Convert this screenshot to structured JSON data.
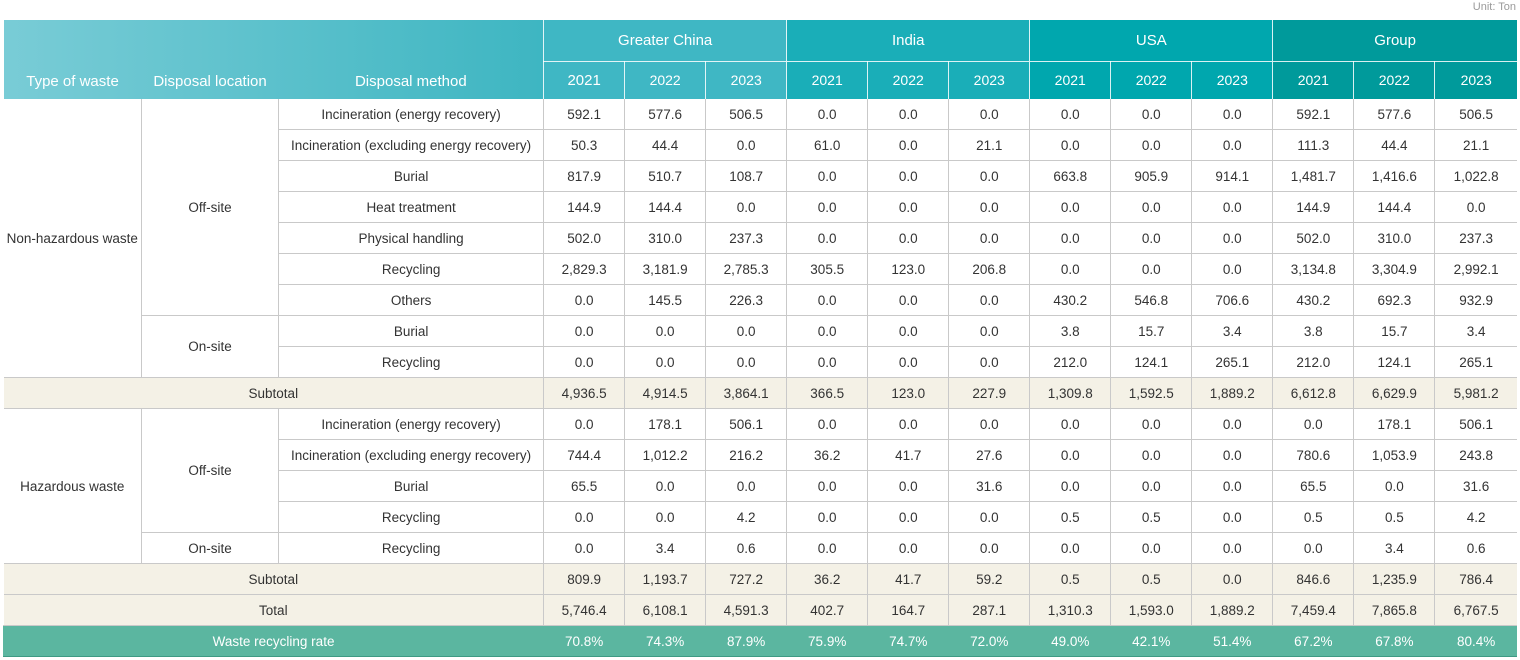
{
  "unit_label": "Unit: Ton",
  "header": {
    "type_of_waste": "Type of waste",
    "disposal_location": "Disposal location",
    "disposal_method": "Disposal method",
    "regions": [
      "Greater China",
      "India",
      "USA",
      "Group"
    ],
    "years": [
      "2021",
      "2022",
      "2023"
    ]
  },
  "non_hazardous": {
    "type": "Non-hazardous waste",
    "offsite_label": "Off-site",
    "onsite_label": "On-site",
    "rows": [
      {
        "method": "Incineration (energy recovery)",
        "v": [
          "592.1",
          "577.6",
          "506.5",
          "0.0",
          "0.0",
          "0.0",
          "0.0",
          "0.0",
          "0.0",
          "592.1",
          "577.6",
          "506.5"
        ]
      },
      {
        "method": "Incineration (excluding energy recovery)",
        "v": [
          "50.3",
          "44.4",
          "0.0",
          "61.0",
          "0.0",
          "21.1",
          "0.0",
          "0.0",
          "0.0",
          "111.3",
          "44.4",
          "21.1"
        ]
      },
      {
        "method": "Burial",
        "v": [
          "817.9",
          "510.7",
          "108.7",
          "0.0",
          "0.0",
          "0.0",
          "663.8",
          "905.9",
          "914.1",
          "1,481.7",
          "1,416.6",
          "1,022.8"
        ]
      },
      {
        "method": "Heat treatment",
        "v": [
          "144.9",
          "144.4",
          "0.0",
          "0.0",
          "0.0",
          "0.0",
          "0.0",
          "0.0",
          "0.0",
          "144.9",
          "144.4",
          "0.0"
        ]
      },
      {
        "method": "Physical handling",
        "v": [
          "502.0",
          "310.0",
          "237.3",
          "0.0",
          "0.0",
          "0.0",
          "0.0",
          "0.0",
          "0.0",
          "502.0",
          "310.0",
          "237.3"
        ]
      },
      {
        "method": "Recycling",
        "v": [
          "2,829.3",
          "3,181.9",
          "2,785.3",
          "305.5",
          "123.0",
          "206.8",
          "0.0",
          "0.0",
          "0.0",
          "3,134.8",
          "3,304.9",
          "2,992.1"
        ]
      },
      {
        "method": "Others",
        "v": [
          "0.0",
          "145.5",
          "226.3",
          "0.0",
          "0.0",
          "0.0",
          "430.2",
          "546.8",
          "706.6",
          "430.2",
          "692.3",
          "932.9"
        ]
      },
      {
        "method": "Burial",
        "v": [
          "0.0",
          "0.0",
          "0.0",
          "0.0",
          "0.0",
          "0.0",
          "3.8",
          "15.7",
          "3.4",
          "3.8",
          "15.7",
          "3.4"
        ]
      },
      {
        "method": "Recycling",
        "v": [
          "0.0",
          "0.0",
          "0.0",
          "0.0",
          "0.0",
          "0.0",
          "212.0",
          "124.1",
          "265.1",
          "212.0",
          "124.1",
          "265.1"
        ]
      }
    ],
    "subtotal": {
      "label": "Subtotal",
      "v": [
        "4,936.5",
        "4,914.5",
        "3,864.1",
        "366.5",
        "123.0",
        "227.9",
        "1,309.8",
        "1,592.5",
        "1,889.2",
        "6,612.8",
        "6,629.9",
        "5,981.2"
      ]
    }
  },
  "hazardous": {
    "type": "Hazardous waste",
    "offsite_label": "Off-site",
    "onsite_label": "On-site",
    "rows": [
      {
        "method": "Incineration (energy recovery)",
        "v": [
          "0.0",
          "178.1",
          "506.1",
          "0.0",
          "0.0",
          "0.0",
          "0.0",
          "0.0",
          "0.0",
          "0.0",
          "178.1",
          "506.1"
        ]
      },
      {
        "method": "Incineration (excluding energy recovery)",
        "v": [
          "744.4",
          "1,012.2",
          "216.2",
          "36.2",
          "41.7",
          "27.6",
          "0.0",
          "0.0",
          "0.0",
          "780.6",
          "1,053.9",
          "243.8"
        ]
      },
      {
        "method": "Burial",
        "v": [
          "65.5",
          "0.0",
          "0.0",
          "0.0",
          "0.0",
          "31.6",
          "0.0",
          "0.0",
          "0.0",
          "65.5",
          "0.0",
          "31.6"
        ]
      },
      {
        "method": "Recycling",
        "v": [
          "0.0",
          "0.0",
          "4.2",
          "0.0",
          "0.0",
          "0.0",
          "0.5",
          "0.5",
          "0.0",
          "0.5",
          "0.5",
          "4.2"
        ]
      },
      {
        "method": "Recycling",
        "v": [
          "0.0",
          "3.4",
          "0.6",
          "0.0",
          "0.0",
          "0.0",
          "0.0",
          "0.0",
          "0.0",
          "0.0",
          "3.4",
          "0.6"
        ]
      }
    ],
    "subtotal": {
      "label": "Subtotal",
      "v": [
        "809.9",
        "1,193.7",
        "727.2",
        "36.2",
        "41.7",
        "59.2",
        "0.5",
        "0.5",
        "0.0",
        "846.6",
        "1,235.9",
        "786.4"
      ]
    }
  },
  "total": {
    "label": "Total",
    "v": [
      "5,746.4",
      "6,108.1",
      "4,591.3",
      "402.7",
      "164.7",
      "287.1",
      "1,310.3",
      "1,593.0",
      "1,889.2",
      "7,459.4",
      "7,865.8",
      "6,767.5"
    ]
  },
  "recycling_rate": {
    "label": "Waste recycling rate",
    "v": [
      "70.8%",
      "74.3%",
      "87.9%",
      "75.9%",
      "74.7%",
      "72.0%",
      "49.0%",
      "42.1%",
      "51.4%",
      "67.2%",
      "67.8%",
      "80.4%"
    ]
  }
}
